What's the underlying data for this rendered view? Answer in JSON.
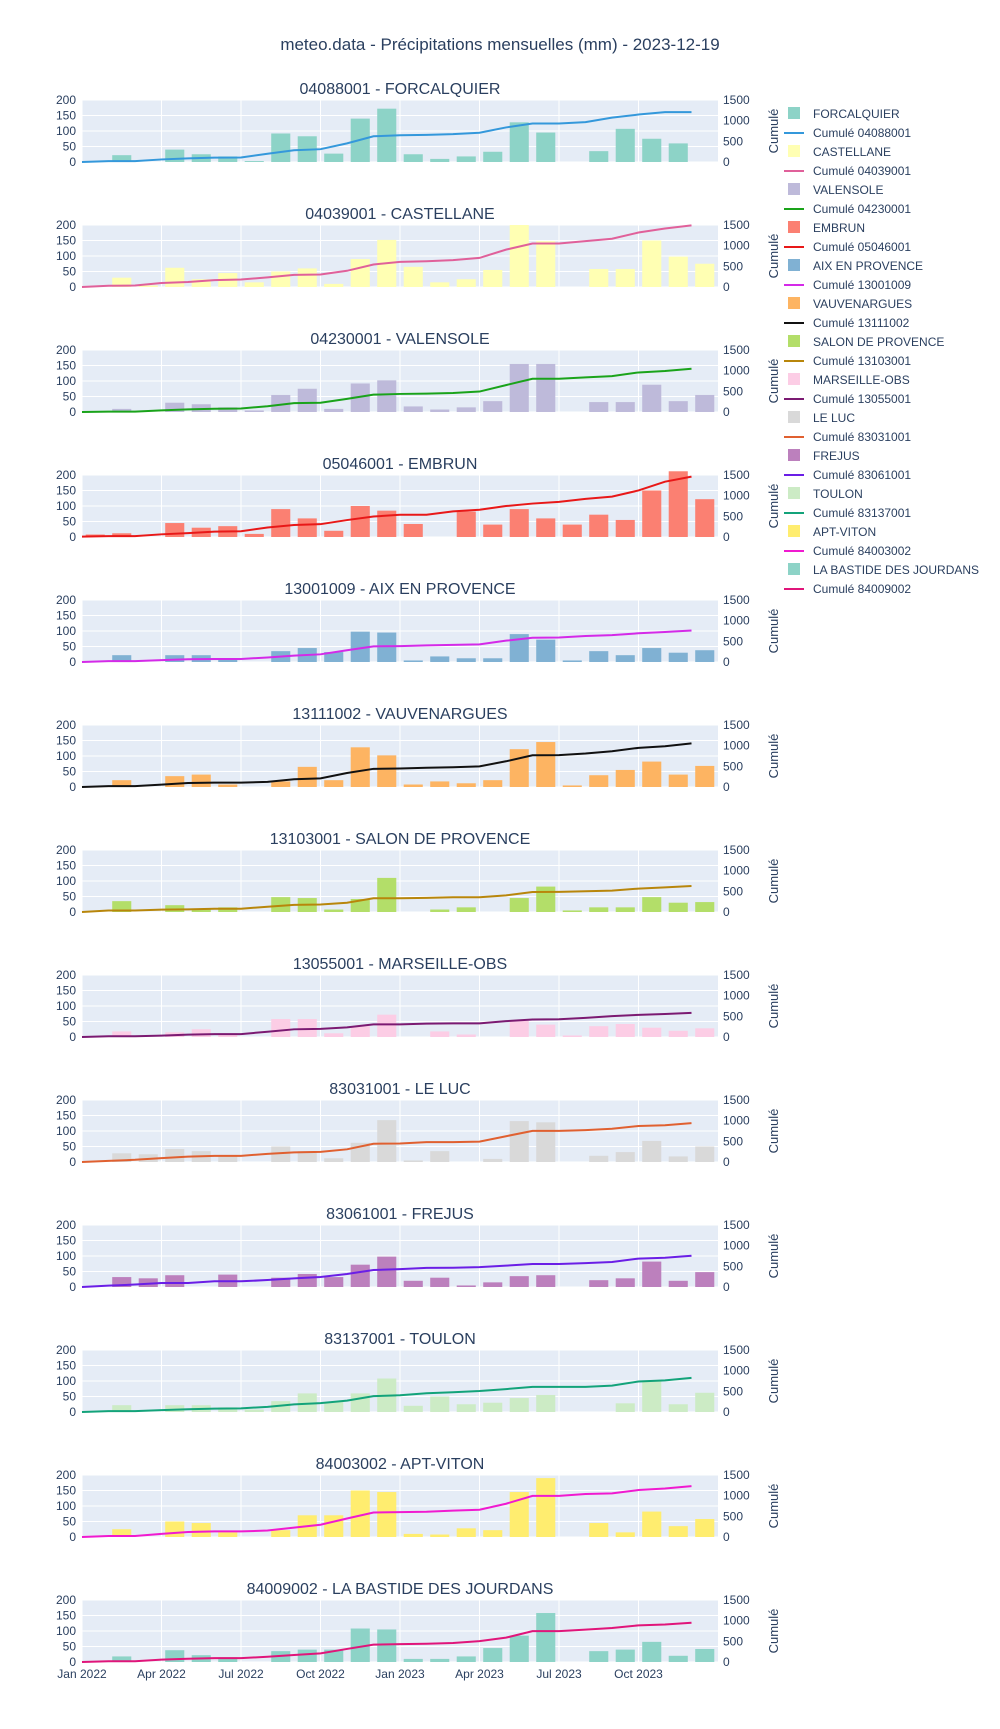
{
  "title": "meteo.data - Précipitations mensuelles (mm) - 2023-12-19",
  "chart_data": {
    "type": "bar",
    "months": [
      "2022-01",
      "2022-02",
      "2022-03",
      "2022-04",
      "2022-05",
      "2022-06",
      "2022-07",
      "2022-08",
      "2022-09",
      "2022-10",
      "2022-11",
      "2022-12",
      "2023-01",
      "2023-02",
      "2023-03",
      "2023-04",
      "2023-05",
      "2023-06",
      "2023-07",
      "2023-08",
      "2023-09",
      "2023-10",
      "2023-11",
      "2023-12"
    ],
    "x_tick_labels": [
      "Jan 2022",
      "Apr 2022",
      "Jul 2022",
      "Oct 2022",
      "Jan 2023",
      "Apr 2023",
      "Jul 2023",
      "Oct 2023"
    ],
    "y_left_range": [
      0,
      200
    ],
    "y_left_ticks": [
      "0",
      "50",
      "100",
      "150",
      "200"
    ],
    "y_right_range": [
      0,
      1500
    ],
    "y_right_ticks": [
      "0",
      "500",
      "1000",
      "1500"
    ],
    "y_right_label": "Cumulé",
    "grid": true,
    "legend_position": "right",
    "stations": [
      {
        "code": "04088001",
        "name": "FORCALQUIER",
        "title": "04088001 - FORCALQUIER",
        "bar_name": "FORCALQUIER",
        "line_name": "Cumulé 04088001",
        "bar_color": "#8dd3c7",
        "line_color": "#3498db",
        "values": [
          0,
          22,
          0,
          40,
          25,
          18,
          3,
          92,
          83,
          27,
          140,
          172,
          25,
          10,
          18,
          33,
          128,
          95,
          0,
          35,
          107,
          75,
          60,
          0
        ]
      },
      {
        "code": "04039001",
        "name": "CASTELLANE",
        "title": "04039001 - CASTELLANE",
        "bar_name": "CASTELLANE",
        "line_name": "Cumulé 04039001",
        "bar_color": "#ffffb3",
        "line_color": "#e0609a",
        "values": [
          0,
          30,
          5,
          62,
          25,
          45,
          15,
          50,
          60,
          10,
          90,
          152,
          65,
          15,
          25,
          55,
          200,
          148,
          0,
          58,
          58,
          150,
          98,
          75
        ]
      },
      {
        "code": "04230001",
        "name": "VALENSOLE",
        "title": "04230001 - VALENSOLE",
        "bar_name": "VALENSOLE",
        "line_name": "Cumulé 04230001",
        "bar_color": "#bebada",
        "line_color": "#1aa31a",
        "values": [
          0,
          10,
          0,
          30,
          25,
          15,
          5,
          55,
          75,
          10,
          92,
          102,
          18,
          8,
          15,
          35,
          155,
          155,
          0,
          32,
          32,
          88,
          35,
          55
        ]
      },
      {
        "code": "05046001",
        "name": "EMBRUN",
        "title": "05046001 - EMBRUN",
        "bar_name": "EMBRUN",
        "line_name": "Cumulé 05046001",
        "bar_color": "#fb8072",
        "line_color": "#e81818",
        "values": [
          8,
          12,
          0,
          45,
          30,
          35,
          10,
          90,
          60,
          20,
          100,
          85,
          42,
          0,
          82,
          40,
          90,
          60,
          40,
          72,
          55,
          150,
          212,
          122
        ]
      },
      {
        "code": "13001009",
        "name": "AIX EN PROVENCE",
        "title": "13001009 - AIX EN PROVENCE",
        "bar_name": "AIX EN PROVENCE",
        "line_name": "Cumulé 13001009",
        "bar_color": "#80b1d3",
        "line_color": "#d42ae8",
        "values": [
          0,
          22,
          0,
          22,
          22,
          8,
          0,
          35,
          45,
          32,
          98,
          95,
          5,
          18,
          12,
          12,
          90,
          72,
          5,
          35,
          22,
          45,
          30,
          38
        ]
      },
      {
        "code": "13111002",
        "name": "VAUVENARGUES",
        "title": "13111002 - VAUVENARGUES",
        "bar_name": "VAUVENARGUES",
        "line_name": "Cumulé 13111002",
        "bar_color": "#fdb462",
        "line_color": "#111111",
        "values": [
          0,
          22,
          0,
          35,
          40,
          8,
          0,
          18,
          65,
          22,
          128,
          102,
          8,
          18,
          12,
          22,
          122,
          145,
          5,
          38,
          55,
          82,
          40,
          68
        ]
      },
      {
        "code": "13103001",
        "name": "SALON DE PROVENCE",
        "title": "13103001 - SALON DE PROVENCE",
        "bar_name": "SALON DE PROVENCE",
        "line_name": "Cumulé 13103001",
        "bar_color": "#b3de69",
        "line_color": "#b8860b",
        "values": [
          0,
          35,
          0,
          22,
          8,
          15,
          0,
          48,
          45,
          8,
          42,
          110,
          0,
          8,
          15,
          0,
          45,
          82,
          5,
          15,
          15,
          48,
          30,
          32
        ]
      },
      {
        "code": "13055001",
        "name": "MARSEILLE-OBS",
        "title": "13055001 - MARSEILLE-OBS",
        "bar_name": "MARSEILLE-OBS",
        "line_name": "Cumulé 13055001",
        "bar_color": "#fccde5",
        "line_color": "#7b1a72",
        "values": [
          0,
          18,
          0,
          15,
          25,
          12,
          0,
          58,
          58,
          12,
          35,
          72,
          0,
          18,
          8,
          0,
          52,
          40,
          5,
          35,
          42,
          30,
          20,
          28
        ]
      },
      {
        "code": "83031001",
        "name": "LE LUC",
        "title": "83031001 - LE LUC",
        "bar_name": "LE LUC",
        "line_name": "Cumulé 83031001",
        "bar_color": "#d9d9d9",
        "line_color": "#e06030",
        "values": [
          0,
          28,
          25,
          42,
          35,
          18,
          0,
          50,
          35,
          12,
          62,
          135,
          5,
          35,
          0,
          10,
          132,
          128,
          0,
          20,
          32,
          68,
          18,
          50
        ]
      },
      {
        "code": "83061001",
        "name": "FREJUS",
        "title": "83061001 - FREJUS",
        "bar_name": "FREJUS",
        "line_name": "Cumulé 83061001",
        "bar_color": "#bc80bd",
        "line_color": "#6a1ee6",
        "values": [
          0,
          32,
          28,
          38,
          0,
          40,
          0,
          30,
          42,
          32,
          72,
          98,
          20,
          30,
          5,
          15,
          35,
          38,
          0,
          22,
          28,
          82,
          20,
          48
        ]
      },
      {
        "code": "83137001",
        "name": "TOULON",
        "title": "83137001 - TOULON",
        "bar_name": "TOULON",
        "line_name": "Cumulé 83137001",
        "bar_color": "#ccebc5",
        "line_color": "#13a37a",
        "values": [
          0,
          22,
          0,
          22,
          22,
          15,
          8,
          35,
          60,
          32,
          60,
          108,
          20,
          50,
          25,
          30,
          45,
          55,
          0,
          0,
          28,
          102,
          25,
          62
        ]
      },
      {
        "code": "84003002",
        "name": "APT-VITON",
        "title": "84003002 - APT-VITON",
        "bar_name": "APT-VITON",
        "line_name": "Cumulé 84003002",
        "bar_color": "#ffed6f",
        "line_color": "#f01ad0",
        "values": [
          0,
          25,
          0,
          50,
          45,
          15,
          0,
          22,
          70,
          70,
          150,
          145,
          10,
          8,
          28,
          22,
          145,
          190,
          0,
          45,
          15,
          82,
          35,
          58
        ]
      },
      {
        "code": "84009002",
        "name": "LA BASTIDE DES JOURDANS",
        "title": "84009002 - LA BASTIDE DES JOURDANS",
        "bar_name": "LA BASTIDE DES JOURDANS",
        "line_name": "Cumulé 84009002",
        "bar_color": "#8dd3c7",
        "line_color": "#e0157a",
        "values": [
          0,
          18,
          0,
          38,
          22,
          15,
          0,
          35,
          40,
          40,
          108,
          105,
          10,
          10,
          18,
          45,
          85,
          158,
          0,
          35,
          40,
          65,
          20,
          42
        ]
      }
    ]
  }
}
